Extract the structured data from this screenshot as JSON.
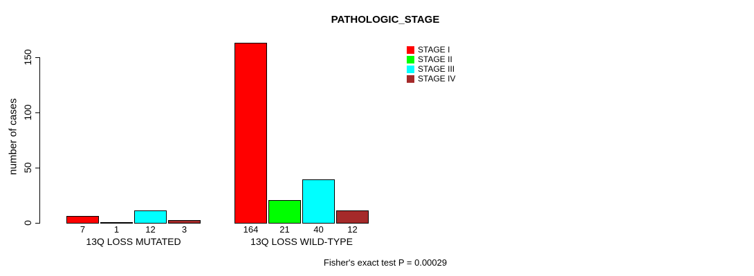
{
  "chart_data": {
    "type": "bar",
    "title": "PATHOLOGIC_STAGE",
    "ylabel": "number of cases",
    "xlabel": "",
    "ylim": [
      0,
      175
    ],
    "yticks": [
      0,
      50,
      100,
      150
    ],
    "categories": [
      "13Q LOSS MUTATED",
      "13Q LOSS WILD-TYPE"
    ],
    "series": [
      {
        "name": "STAGE I",
        "color": "#FF0000",
        "values": [
          7,
          164
        ]
      },
      {
        "name": "STAGE II",
        "color": "#00FF00",
        "values": [
          1,
          21
        ]
      },
      {
        "name": "STAGE III",
        "color": "#00FFFF",
        "values": [
          12,
          40
        ]
      },
      {
        "name": "STAGE IV",
        "color": "#A52A2A",
        "values": [
          3,
          12
        ]
      }
    ],
    "bar_value_labels_shown": true,
    "legend_position": "top-right",
    "grid": false,
    "annotation": "Fisher's exact test P = 0.00029",
    "background_color": "#FFFFFF",
    "axis_color": "#000000",
    "bar_border_color": "#000000"
  }
}
